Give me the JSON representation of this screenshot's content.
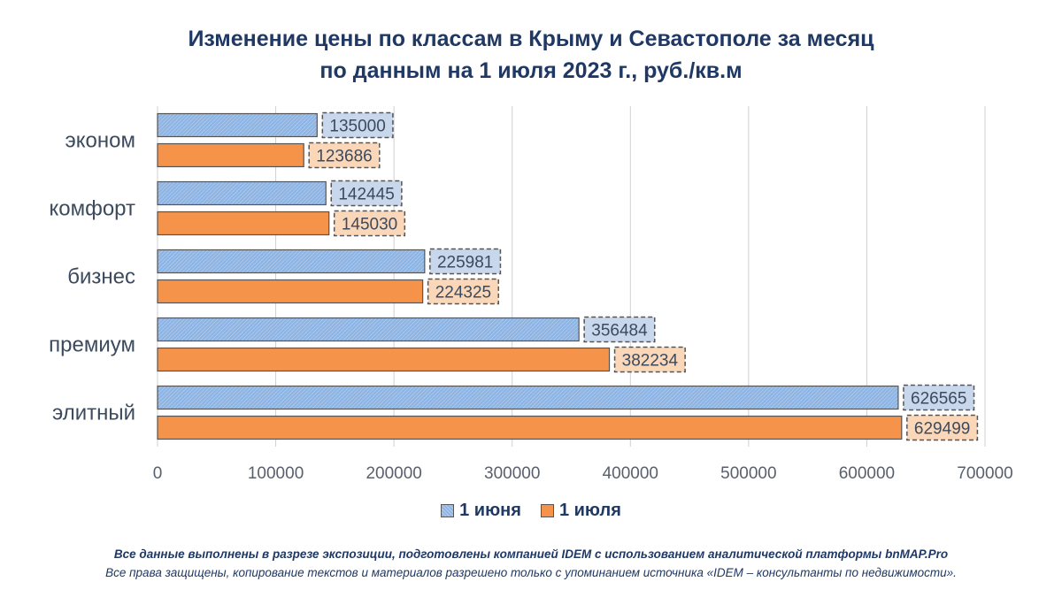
{
  "header": {
    "title_line1": "Изменение цены по классам в Крыму и Севастополе за месяц",
    "title_line2": "по данным на 1 июля 2023 г., руб./кв.м"
  },
  "chart_data": {
    "type": "bar",
    "orientation": "horizontal",
    "categories": [
      "эконом",
      "комфорт",
      "бизнес",
      "премиум",
      "элитный"
    ],
    "series": [
      {
        "name": "1 июня",
        "color": "#8eb4e3",
        "values": [
          135000,
          142445,
          225981,
          356484,
          626565
        ]
      },
      {
        "name": "1 июля",
        "color": "#f5934a",
        "values": [
          123686,
          145030,
          224325,
          382234,
          629499
        ]
      }
    ],
    "xlim": [
      0,
      700000
    ],
    "xticks": [
      "0",
      "100000",
      "200000",
      "300000",
      "400000",
      "500000",
      "600000",
      "700000"
    ],
    "grid": true,
    "legend": "bottom",
    "label_fill": {
      "1 июня": "#c9d7ec",
      "1 июля": "#fad7b8"
    }
  },
  "footer": {
    "line1": "Все данные выполнены в разрезе экспозиции, подготовлены компанией IDEM с использованием аналитической платформы bnMAP.Pro",
    "line2": "Все права защищены, копирование текстов и материалов разрешено только с упоминанием источника «IDEM – консультанты по недвижимости»."
  }
}
